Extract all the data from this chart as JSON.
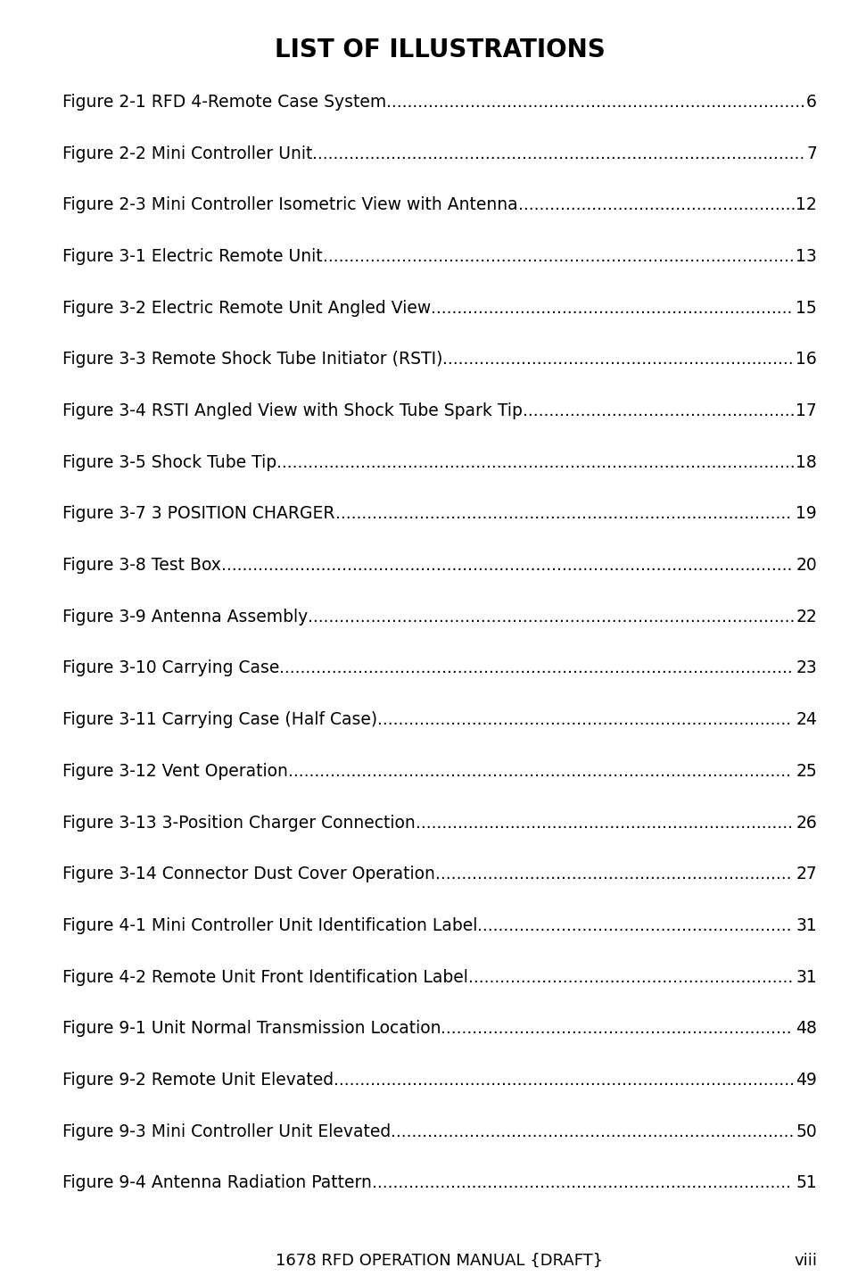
{
  "title": "LIST OF ILLUSTRATIONS",
  "entries": [
    {
      "label": "Figure 2-1 RFD 4-Remote Case System",
      "page": "6"
    },
    {
      "label": "Figure 2-2 Mini Controller Unit",
      "page": "7"
    },
    {
      "label": "Figure 2-3 Mini Controller Isometric View with Antenna",
      "page": "12"
    },
    {
      "label": "Figure 3-1 Electric Remote Unit",
      "page": "13"
    },
    {
      "label": "Figure 3-2 Electric Remote Unit Angled View",
      "page": "15"
    },
    {
      "label": "Figure 3-3 Remote Shock Tube Initiator (RSTI)",
      "page": "16"
    },
    {
      "label": "Figure 3-4 RSTI Angled View with Shock Tube Spark Tip",
      "page": "17"
    },
    {
      "label": "Figure 3-5 Shock Tube Tip",
      "page": "18"
    },
    {
      "label": "Figure 3-7 3 POSITION CHARGER",
      "page": "19"
    },
    {
      "label": "Figure 3-8 Test Box",
      "page": "20"
    },
    {
      "label": "Figure 3-9 Antenna Assembly",
      "page": "22"
    },
    {
      "label": "Figure 3-10 Carrying Case",
      "page": "23"
    },
    {
      "label": "Figure 3-11 Carrying Case (Half Case)",
      "page": "24"
    },
    {
      "label": "Figure 3-12 Vent Operation",
      "page": "25"
    },
    {
      "label": "Figure 3-13 3-Position Charger Connection",
      "page": "26"
    },
    {
      "label": "Figure 3-14 Connector Dust Cover Operation",
      "page": "27"
    },
    {
      "label": "Figure 4-1 Mini Controller Unit Identification Label",
      "page": "31"
    },
    {
      "label": "Figure 4-2 Remote Unit Front Identification Label",
      "page": "31"
    },
    {
      "label": "Figure 9-1 Unit Normal Transmission Location",
      "page": "48"
    },
    {
      "label": "Figure 9-2 Remote Unit Elevated",
      "page": "49"
    },
    {
      "label": "Figure 9-3 Mini Controller Unit Elevated",
      "page": "50"
    },
    {
      "label": "Figure 9-4 Antenna Radiation Pattern",
      "page": "51"
    }
  ],
  "footer_center": "1678 RFD OPERATION MANUAL {DRAFT}",
  "footer_right": "viii",
  "bg_color": "#ffffff",
  "text_color": "#000000",
  "title_fontsize": 20,
  "entry_fontsize": 13.5,
  "footer_fontsize": 13
}
